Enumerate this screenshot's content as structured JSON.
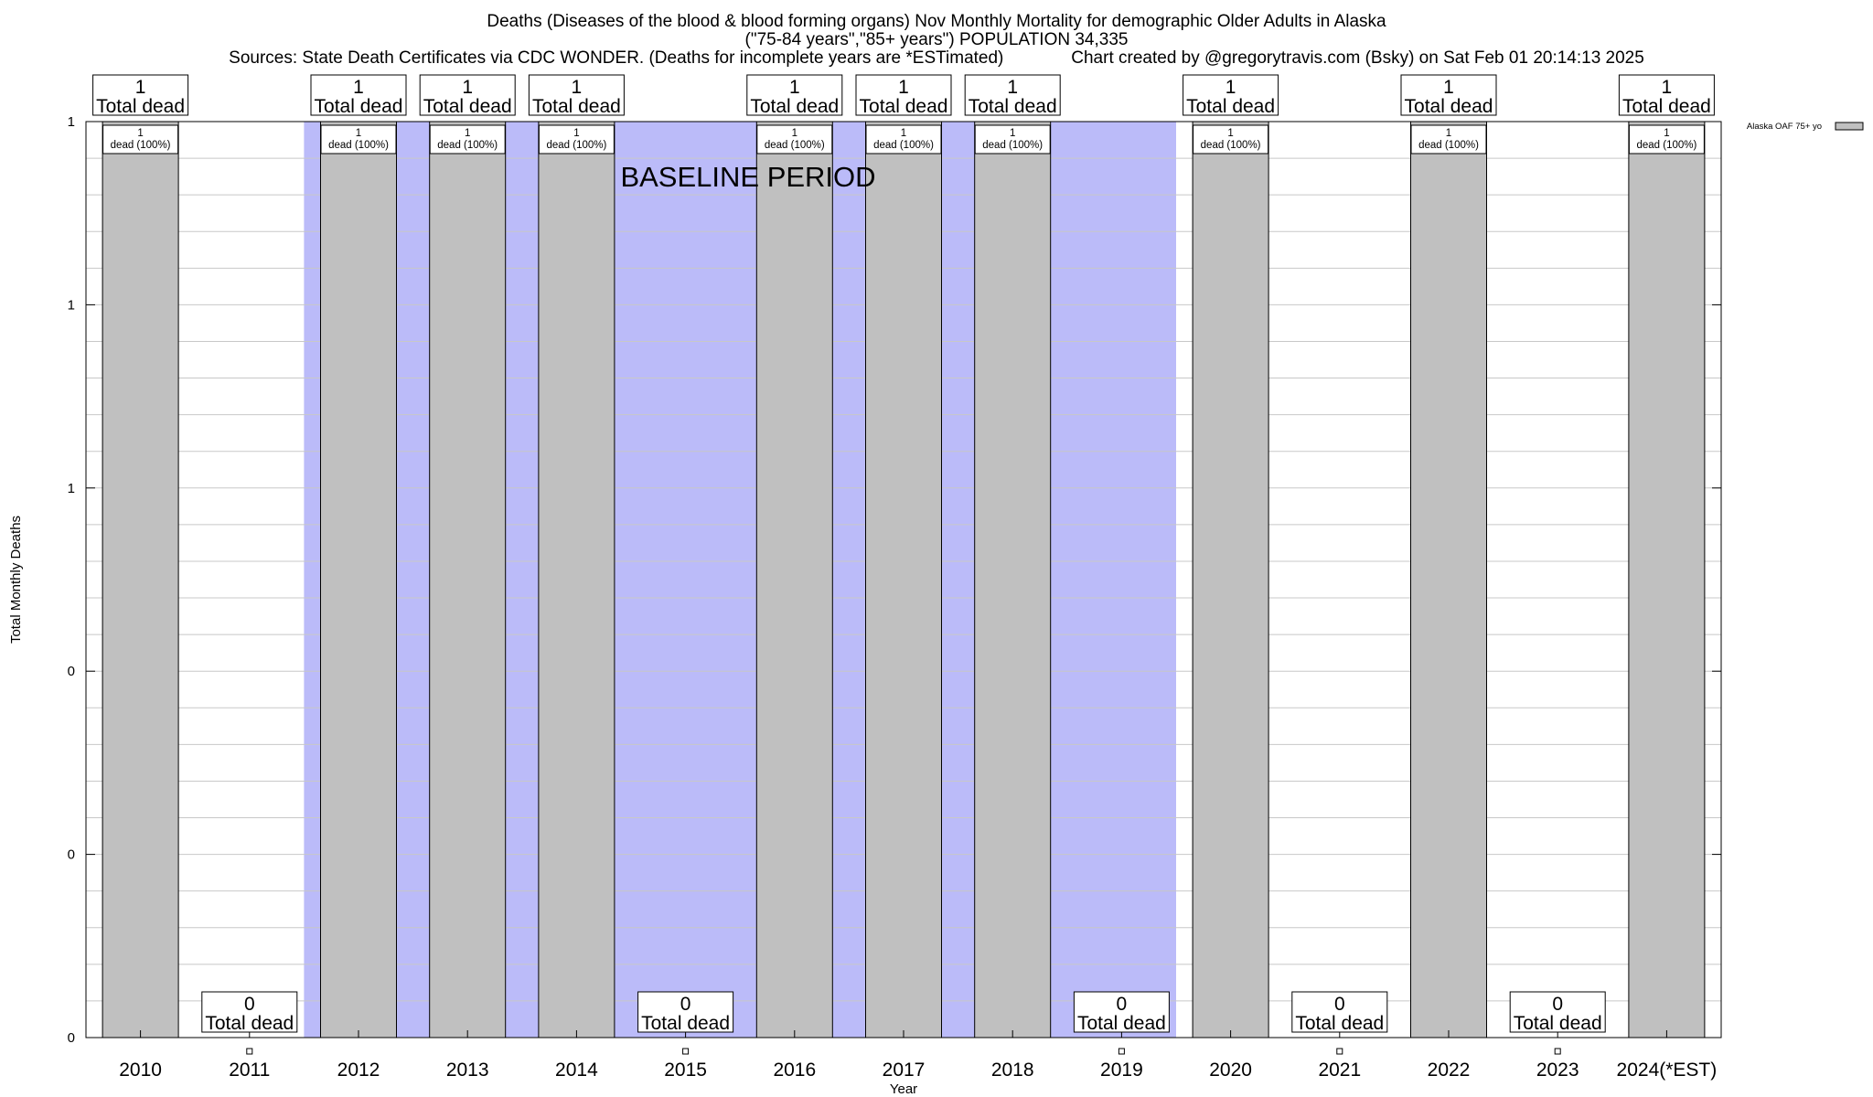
{
  "titles": {
    "line1": "Deaths (Diseases of the blood & blood forming organs) Nov Monthly Mortality for demographic Older Adults in Alaska",
    "line2": "(\"75-84 years\",\"85+ years\") POPULATION 34,335",
    "line3": "Sources: State Death Certificates via CDC WONDER. (Deaths for incomplete years are *ESTimated)              Chart created by @gregorytravis.com (Bsky) on Sat Feb 01 20:14:13 2025"
  },
  "chart_data": {
    "type": "bar",
    "xlabel": "Year",
    "ylabel": "Total Monthly Deaths",
    "ylim": [
      0,
      1
    ],
    "y_tick_labels": [
      "0",
      "0",
      "0",
      "1",
      "1",
      "1"
    ],
    "categories": [
      "2010",
      "2011",
      "2012",
      "2013",
      "2014",
      "2015",
      "2016",
      "2017",
      "2018",
      "2019",
      "2020",
      "2021",
      "2022",
      "2023",
      "2024(*EST)"
    ],
    "series": [
      {
        "name": "Alaska OAF 75+ yo",
        "values": [
          1,
          0,
          1,
          1,
          1,
          0,
          1,
          1,
          1,
          0,
          1,
          0,
          1,
          0,
          1
        ]
      }
    ],
    "total_labels": [
      "1\nTotal dead",
      "0\nTotal dead",
      "1\nTotal dead",
      "1\nTotal dead",
      "1\nTotal dead",
      "0\nTotal dead",
      "1\nTotal dead",
      "1\nTotal dead",
      "1\nTotal dead",
      "0\nTotal dead",
      "1\nTotal dead",
      "0\nTotal dead",
      "1\nTotal dead",
      "0\nTotal dead",
      "1\nTotal dead"
    ],
    "inner_labels": [
      "1\ndead (100%)",
      "",
      "1\ndead (100%)",
      "1\ndead (100%)",
      "1\ndead (100%)",
      "",
      "1\ndead (100%)",
      "1\ndead (100%)",
      "1\ndead (100%)",
      "",
      "1\ndead (100%)",
      "",
      "1\ndead (100%)",
      "",
      "1\ndead (100%)"
    ],
    "baseline_years": [
      "2012",
      "2013",
      "2014",
      "2015",
      "2016",
      "2017",
      "2018",
      "2019"
    ],
    "baseline_label": "BASELINE PERIOD",
    "grid": true,
    "legend_position": "top-right",
    "colors": {
      "bar": "#c0c0c0",
      "baseline_shade": "#bbbbf9",
      "grid": "#c8c8c8"
    }
  }
}
